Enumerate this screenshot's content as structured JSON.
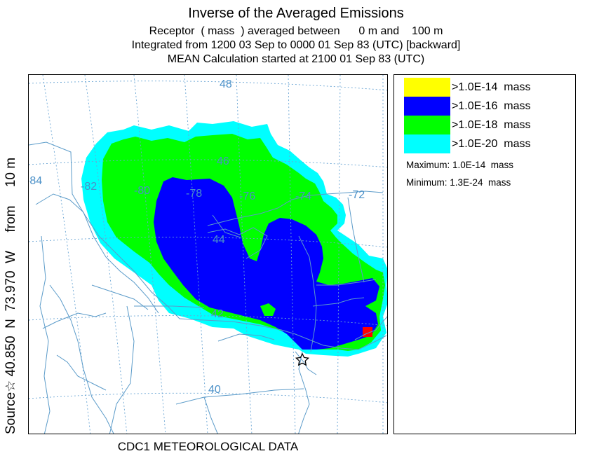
{
  "titles": {
    "line1": "Inverse of the Averaged Emissions",
    "line2": "Receptor  ( mass  ) averaged between      0 m and    100 m",
    "line3": "Integrated from 1200 03 Sep to 0000 01 Sep 83 (UTC) [backward]",
    "line4": "MEAN Calculation started at 2100 01 Sep 83 (UTC)"
  },
  "y_axis_label": "Source☆ 40.850  N  73.970  W     from     10 m",
  "footer": "CDC1 METEOROLOGICAL DATA",
  "map": {
    "longitude_labels": [
      "-84",
      "-82",
      "-80",
      "-78",
      "-76",
      "-74",
      "-72"
    ],
    "latitude_labels": [
      "48",
      "46",
      "44",
      "42",
      "40"
    ],
    "source_marker": "source-star-icon"
  },
  "legend": {
    "items": [
      {
        "label": ">1.0E-14  mass",
        "color": "#ffff00"
      },
      {
        "label": ">1.0E-16  mass",
        "color": "#0000ff"
      },
      {
        "label": ">1.0E-18  mass",
        "color": "#00ff00"
      },
      {
        "label": ">1.0E-20  mass",
        "color": "#00ffff"
      }
    ],
    "maximum": "Maximum: 1.0E-14  mass",
    "minimum": "Minimum: 1.3E-24  mass"
  },
  "colors": {
    "graticule": "#6aa5d4",
    "boundaries": "#5b9bc9",
    "hotspot": "#ff0000"
  }
}
